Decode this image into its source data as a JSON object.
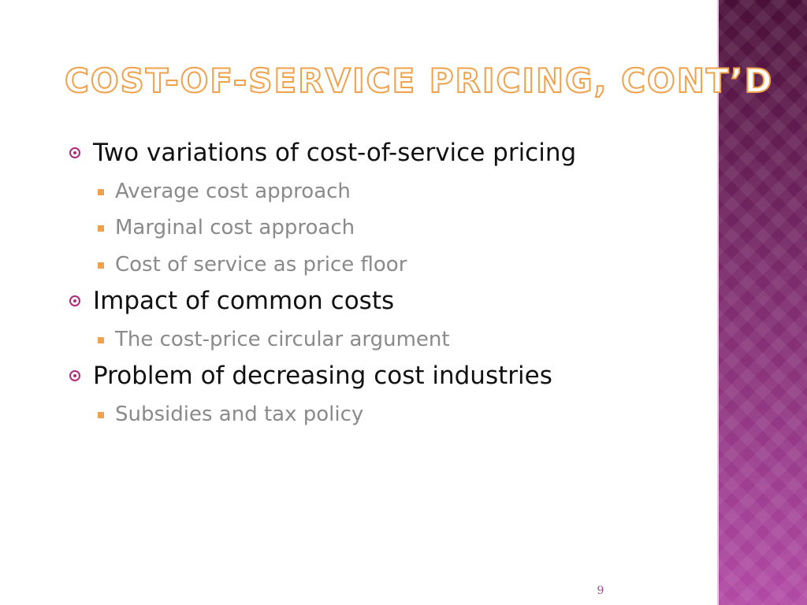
{
  "slide": {
    "title": "Cost-of-Service Pricing, Cont’d",
    "bullets": [
      {
        "text": "Two variations of cost-of-service pricing",
        "subitems": [
          "Average cost approach",
          "Marginal cost approach",
          "Cost of service as price floor"
        ]
      },
      {
        "text": "Impact of common costs",
        "subitems": [
          "The cost-price circular argument"
        ]
      },
      {
        "text": "Problem of decreasing cost industries",
        "subitems": [
          "Subsidies and tax policy"
        ]
      }
    ],
    "page_number": "9"
  },
  "theme": {
    "title_color": "#f0a14a",
    "bullet_color": "#b1297a",
    "subbullet_color": "#f0a14a",
    "band_top_color": "#4a1038",
    "band_bottom_color": "#b24aa6"
  },
  "icons": {
    "level1": "radio-bullet-icon",
    "level2": "square-bullet-icon"
  }
}
